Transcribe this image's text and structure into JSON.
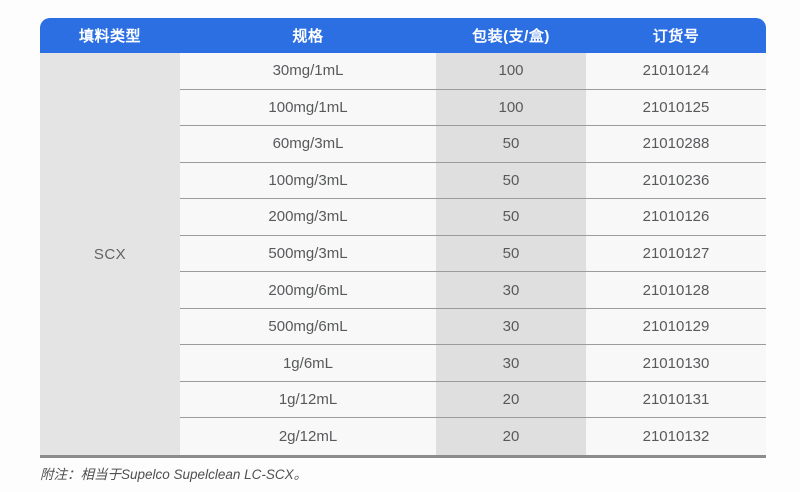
{
  "table": {
    "headers": [
      "填料类型",
      "规格",
      "包装(支/盒)",
      "订货号"
    ],
    "filler_type": "SCX",
    "rows": [
      {
        "spec": "30mg/1mL",
        "pack": "100",
        "order_no": "21010124"
      },
      {
        "spec": "100mg/1mL",
        "pack": "100",
        "order_no": "21010125"
      },
      {
        "spec": "60mg/3mL",
        "pack": "50",
        "order_no": "21010288"
      },
      {
        "spec": "100mg/3mL",
        "pack": "50",
        "order_no": "21010236"
      },
      {
        "spec": "200mg/3mL",
        "pack": "50",
        "order_no": "21010126"
      },
      {
        "spec": "500mg/3mL",
        "pack": "50",
        "order_no": "21010127"
      },
      {
        "spec": "200mg/6mL",
        "pack": "30",
        "order_no": "21010128"
      },
      {
        "spec": "500mg/6mL",
        "pack": "30",
        "order_no": "21010129"
      },
      {
        "spec": "1g/6mL",
        "pack": "30",
        "order_no": "21010130"
      },
      {
        "spec": "1g/12mL",
        "pack": "20",
        "order_no": "21010131"
      },
      {
        "spec": "2g/12mL",
        "pack": "20",
        "order_no": "21010132"
      }
    ]
  },
  "note": "附注：相当于Supelco Supelclean LC-SCX。",
  "colors": {
    "page_bg": "#fdfdfd",
    "header_bg": "#2b6fe3",
    "header_text": "#ffffff",
    "col1_bg": "#e4e4e4",
    "col3_bg": "#dfdfdf",
    "col_light_bg": "#f8f8f8",
    "row_border": "#9c9c9c",
    "table_bottom_border": "#8c8c8c",
    "body_text": "#58595b",
    "filler_text": "#636363",
    "note_text": "#4f4f4f"
  }
}
